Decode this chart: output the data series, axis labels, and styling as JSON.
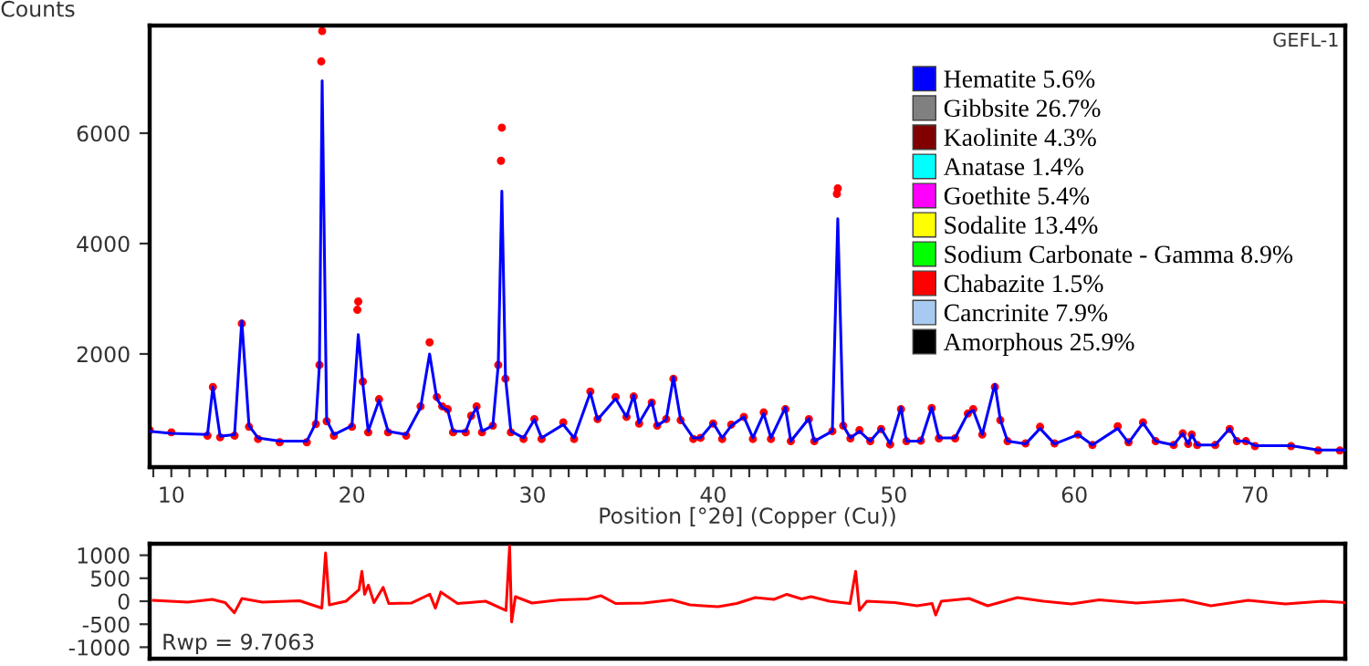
{
  "chart_data": [
    {
      "type": "line",
      "ylabel": "Counts",
      "xlabel": "Position [°2θ] (Copper (Cu))",
      "annotations": [
        "GEFL-1"
      ],
      "xlim": [
        8.8,
        75
      ],
      "ylim": [
        -50,
        7950
      ],
      "xticks": [
        {
          "value": 9,
          "label": null
        },
        10,
        {
          "value": 11,
          "label": null
        },
        {
          "value": 12,
          "label": null
        },
        {
          "value": 13,
          "label": null
        },
        {
          "value": 14,
          "label": null
        },
        {
          "value": 15,
          "label": null
        },
        {
          "value": 16,
          "label": null
        },
        {
          "value": 17,
          "label": null
        },
        {
          "value": 18,
          "label": null
        },
        {
          "value": 19,
          "label": null
        },
        20,
        {
          "value": 21,
          "label": null
        },
        {
          "value": 22,
          "label": null
        },
        {
          "value": 23,
          "label": null
        },
        {
          "value": 24,
          "label": null
        },
        {
          "value": 25,
          "label": null
        },
        {
          "value": 26,
          "label": null
        },
        {
          "value": 27,
          "label": null
        },
        {
          "value": 28,
          "label": null
        },
        {
          "value": 29,
          "label": null
        },
        30,
        {
          "value": 31,
          "label": null
        },
        {
          "value": 32,
          "label": null
        },
        {
          "value": 33,
          "label": null
        },
        {
          "value": 34,
          "label": null
        },
        {
          "value": 35,
          "label": null
        },
        {
          "value": 36,
          "label": null
        },
        {
          "value": 37,
          "label": null
        },
        {
          "value": 38,
          "label": null
        },
        {
          "value": 39,
          "label": null
        },
        40,
        {
          "value": 41,
          "label": null
        },
        {
          "value": 42,
          "label": null
        },
        {
          "value": 43,
          "label": null
        },
        {
          "value": 44,
          "label": null
        },
        {
          "value": 45,
          "label": null
        },
        {
          "value": 46,
          "label": null
        },
        {
          "value": 47,
          "label": null
        },
        {
          "value": 48,
          "label": null
        },
        {
          "value": 49,
          "label": null
        },
        50,
        {
          "value": 51,
          "label": null
        },
        {
          "value": 52,
          "label": null
        },
        {
          "value": 53,
          "label": null
        },
        {
          "value": 54,
          "label": null
        },
        {
          "value": 55,
          "label": null
        },
        {
          "value": 56,
          "label": null
        },
        {
          "value": 57,
          "label": null
        },
        {
          "value": 58,
          "label": null
        },
        {
          "value": 59,
          "label": null
        },
        60,
        {
          "value": 61,
          "label": null
        },
        {
          "value": 62,
          "label": null
        },
        {
          "value": 63,
          "label": null
        },
        {
          "value": 64,
          "label": null
        },
        {
          "value": 65,
          "label": null
        },
        {
          "value": 66,
          "label": null
        },
        {
          "value": 67,
          "label": null
        },
        {
          "value": 68,
          "label": null
        },
        {
          "value": 69,
          "label": null
        },
        70,
        {
          "value": 71,
          "label": null
        },
        {
          "value": 72,
          "label": null
        },
        {
          "value": 73,
          "label": null
        },
        {
          "value": 74,
          "label": null
        }
      ],
      "yticks": [
        2000,
        4000,
        6000
      ],
      "grid": false,
      "legend": "top right",
      "series": [
        {
          "type": "scatter",
          "marker": "circle",
          "color": "#ff0000",
          "x": [
            8.8,
            10,
            12,
            12.3,
            12.7,
            13.5,
            13.9,
            14.3,
            14.8,
            16,
            17.5,
            18.0,
            18.2,
            18.3,
            18.35,
            18.6,
            19,
            20,
            20.3,
            20.35,
            20.6,
            20.9,
            21.5,
            22,
            23,
            23.8,
            24.3,
            24.7,
            25.0,
            25.3,
            25.6,
            26.3,
            26.6,
            26.9,
            27.2,
            27.8,
            28.1,
            28.25,
            28.3,
            28.5,
            28.8,
            29.5,
            30.1,
            30.5,
            31.7,
            32.3,
            33.2,
            33.6,
            34.6,
            35.2,
            35.6,
            35.9,
            36.6,
            36.9,
            37.4,
            37.8,
            38.2,
            38.9,
            39.3,
            40,
            40.5,
            41,
            41.7,
            42.2,
            42.8,
            43.2,
            44.0,
            44.3,
            45.3,
            45.6,
            46.6,
            46.85,
            46.9,
            47.2,
            47.6,
            48.1,
            48.7,
            49.3,
            49.8,
            50.4,
            50.7,
            51.5,
            52.1,
            52.5,
            53.4,
            54.1,
            54.4,
            54.9,
            55.6,
            55.9,
            56.3,
            57.3,
            58.1,
            58.9,
            60.2,
            61,
            62.4,
            63,
            63.8,
            64.5,
            65.5,
            66.0,
            66.3,
            66.5,
            66.8,
            67.8,
            68.6,
            69.0,
            69.5,
            70,
            72,
            73.5,
            74.7
          ],
          "values": [
            620,
            580,
            520,
            1400,
            490,
            520,
            2550,
            680,
            460,
            400,
            400,
            730,
            1800,
            7300,
            7850,
            780,
            520,
            680,
            2800,
            2950,
            1500,
            580,
            1180,
            580,
            520,
            1050,
            2210,
            1220,
            1050,
            1000,
            580,
            580,
            880,
            1050,
            580,
            700,
            1800,
            5500,
            6100,
            1550,
            580,
            460,
            820,
            460,
            760,
            460,
            1320,
            820,
            1220,
            860,
            1230,
            740,
            1120,
            700,
            820,
            1550,
            800,
            460,
            480,
            740,
            460,
            720,
            860,
            460,
            940,
            460,
            1000,
            420,
            820,
            420,
            600,
            4900,
            5000,
            700,
            470,
            620,
            420,
            640,
            360,
            1000,
            420,
            430,
            1020,
            470,
            470,
            920,
            1000,
            540,
            1400,
            800,
            420,
            380,
            680,
            380,
            540,
            350,
            690,
            400,
            760,
            420,
            350,
            560,
            370,
            540,
            350,
            350,
            640,
            420,
            420,
            330,
            330,
            250,
            250
          ]
        },
        {
          "color": "#0000ff",
          "x": [
            8.8,
            10,
            12,
            12.3,
            12.7,
            13.5,
            13.9,
            14.3,
            14.8,
            16,
            17.5,
            18.0,
            18.2,
            18.35,
            18.6,
            19,
            20,
            20.35,
            20.6,
            20.9,
            21.5,
            22,
            23,
            23.8,
            24.3,
            24.7,
            25.0,
            25.3,
            25.6,
            26.3,
            26.6,
            26.9,
            27.2,
            27.8,
            28.1,
            28.3,
            28.5,
            28.8,
            29.5,
            30.1,
            30.5,
            31.7,
            32.3,
            33.2,
            33.6,
            34.6,
            35.2,
            35.6,
            35.9,
            36.6,
            36.9,
            37.4,
            37.8,
            38.2,
            38.9,
            39.3,
            40,
            40.5,
            41,
            41.7,
            42.2,
            42.8,
            43.2,
            44.0,
            44.3,
            45.3,
            45.6,
            46.6,
            46.9,
            47.2,
            47.6,
            48.1,
            48.7,
            49.3,
            49.8,
            50.4,
            50.7,
            51.5,
            52.1,
            52.5,
            53.4,
            54.1,
            54.4,
            54.9,
            55.6,
            55.9,
            56.3,
            57.3,
            58.1,
            58.9,
            60.2,
            61,
            62.4,
            63,
            63.8,
            64.5,
            65.5,
            66.0,
            66.3,
            66.5,
            66.8,
            67.8,
            68.6,
            69.0,
            69.5,
            70,
            72,
            73.5,
            75
          ],
          "values": [
            600,
            560,
            540,
            1400,
            510,
            540,
            2600,
            700,
            480,
            420,
            420,
            750,
            1800,
            6950,
            800,
            540,
            700,
            2350,
            1470,
            600,
            1160,
            600,
            540,
            1030,
            2000,
            1190,
            1030,
            980,
            600,
            600,
            860,
            1030,
            600,
            700,
            1800,
            4950,
            1580,
            600,
            480,
            810,
            480,
            720,
            480,
            1300,
            810,
            1190,
            860,
            1250,
            750,
            1140,
            700,
            810,
            1580,
            810,
            480,
            480,
            750,
            480,
            700,
            860,
            480,
            920,
            480,
            1030,
            420,
            830,
            420,
            600,
            4450,
            700,
            480,
            600,
            420,
            650,
            370,
            1030,
            420,
            420,
            1030,
            480,
            480,
            920,
            980,
            540,
            1450,
            810,
            420,
            370,
            650,
            370,
            540,
            350,
            650,
            390,
            750,
            420,
            350,
            560,
            370,
            540,
            350,
            350,
            650,
            420,
            420,
            340,
            340,
            260,
            260
          ]
        },
        {
          "name": "Hematite 5.6%",
          "color": "#0000ff",
          "type": "bar"
        },
        {
          "name": "Gibbsite 26.7%",
          "color": "#808080",
          "type": "bar"
        },
        {
          "name": "Kaolinite 4.3%",
          "color": "#800000",
          "type": "bar"
        },
        {
          "name": "Anatase 1.4%",
          "color": "#00ffff",
          "type": "bar"
        },
        {
          "name": "Goethite 5.4%",
          "color": "#ff00ff",
          "type": "bar"
        },
        {
          "name": "Sodalite 13.4%",
          "color": "#ffff00",
          "type": "bar"
        },
        {
          "name": "Sodium Carbonate - Gamma 8.9%",
          "color": "#00ff00",
          "type": "bar"
        },
        {
          "name": "Chabazite 1.5%",
          "color": "#ff0000",
          "type": "bar"
        },
        {
          "name": "Cancrinite 7.9%",
          "color": "#a6caf0",
          "type": "bar"
        },
        {
          "name": "Amorphous 25.9%",
          "color": "#000000",
          "type": "bar"
        }
      ]
    },
    {
      "type": "line",
      "annotations": [
        "Rwp = 9.7063"
      ],
      "tick_labels": "y",
      "xlim": [
        8.8,
        75
      ],
      "ylim": [
        -1250,
        1250
      ],
      "yticks": [
        1000,
        500,
        0,
        {
          "value": -500,
          "label": "-500"
        },
        {
          "value": -1000,
          "label": "-1000"
        }
      ],
      "grid": false,
      "series": [
        {
          "color": "#ff0000",
          "x": [
            9.0,
            10.92,
            12.26,
            12.98,
            13.49,
            13.91,
            15.04,
            17.1,
            18.33,
            18.54,
            18.75,
            19.67,
            20.39,
            20.55,
            20.7,
            20.91,
            21.22,
            21.73,
            22.04,
            23.28,
            24.31,
            24.62,
            24.92,
            25.85,
            27.4,
            28.53,
            28.73,
            28.84,
            29.05,
            29.97,
            31.52,
            33.06,
            33.78,
            34.6,
            36.15,
            37.69,
            38.72,
            40.27,
            41.3,
            42.33,
            43.36,
            44.08,
            44.9,
            45.42,
            46.45,
            47.58,
            47.89,
            48.1,
            48.51,
            50.06,
            51.29,
            52.12,
            52.32,
            52.63,
            54.17,
            55.2,
            56.85,
            58.29,
            59.84,
            61.38,
            63.44,
            66.02,
            67.56,
            69.62,
            71.68,
            73.74,
            75
          ],
          "values": [
            20,
            -20,
            40,
            -30,
            -250,
            60,
            -20,
            10,
            -150,
            1050,
            -80,
            0,
            250,
            650,
            150,
            350,
            -30,
            300,
            -50,
            -40,
            150,
            -150,
            200,
            -50,
            0,
            -200,
            1200,
            -450,
            100,
            -40,
            30,
            50,
            120,
            -50,
            -40,
            30,
            -80,
            -120,
            -50,
            80,
            40,
            150,
            50,
            100,
            0,
            -50,
            650,
            -200,
            0,
            -30,
            -100,
            -50,
            -300,
            0,
            60,
            -100,
            80,
            0,
            -60,
            30,
            -40,
            30,
            -100,
            20,
            -60,
            0,
            -30
          ]
        }
      ]
    }
  ]
}
